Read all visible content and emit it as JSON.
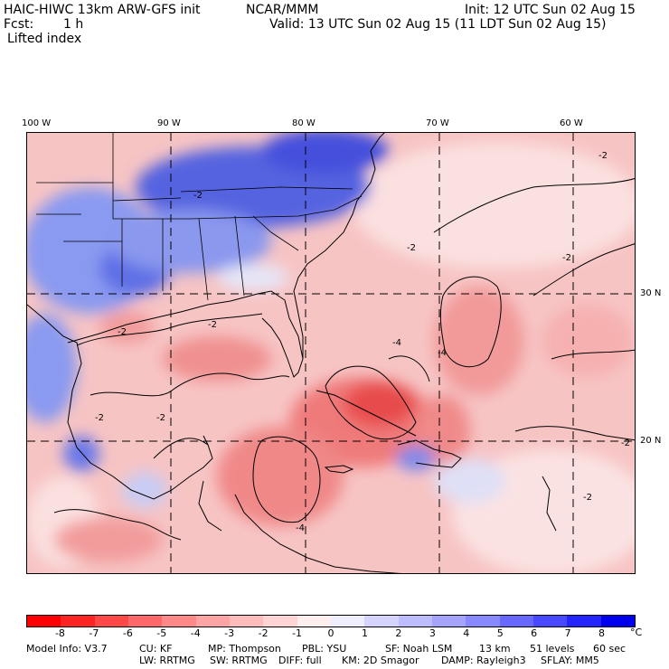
{
  "header": {
    "model_title": "HAIC-HIWC 13km ARW-GFS init",
    "institution": "NCAR/MMM",
    "init": "Init: 12 UTC Sun 02 Aug 15",
    "fcst_label": "Fcst:",
    "fcst_value": "1 h",
    "valid": "Valid: 13 UTC Sun 02 Aug 15 (11 LDT Sun 02 Aug 15)",
    "field": "Lifted index"
  },
  "map": {
    "lon_labels": [
      "100 W",
      "90 W",
      "80 W",
      "70 W",
      "60 W"
    ],
    "lat_labels": [
      "30 N",
      "20 N"
    ],
    "contour_labels": [
      "-2",
      "-2",
      "-2",
      "-2",
      "-2",
      "-2",
      "-2",
      "-2",
      "-4",
      "-4",
      "-4",
      "-2",
      "-2"
    ]
  },
  "colorbar": {
    "unit": "°C",
    "ticks": [
      "-8",
      "-7",
      "-6",
      "-5",
      "-4",
      "-3",
      "-2",
      "-1",
      "0",
      "1",
      "2",
      "3",
      "4",
      "5",
      "6",
      "7",
      "8"
    ],
    "colors": [
      "#ff0000",
      "#ff2424",
      "#ff4848",
      "#ff6868",
      "#ff8888",
      "#ffa4a4",
      "#ffbcbc",
      "#ffd4d4",
      "#ffeeee",
      "#eeeeff",
      "#d4d4ff",
      "#bcbcff",
      "#a4a4ff",
      "#8888ff",
      "#6868ff",
      "#4848ff",
      "#2424ff",
      "#0000ee"
    ]
  },
  "footer": {
    "line1": [
      {
        "k": "model",
        "text": "Model Info: V3.7"
      },
      {
        "k": "cu",
        "text": "CU: KF"
      },
      {
        "k": "mp",
        "text": "MP: Thompson"
      },
      {
        "k": "pbl",
        "text": "PBL: YSU"
      },
      {
        "k": "sf",
        "text": "SF: Noah LSM"
      },
      {
        "k": "res",
        "text": "13 km"
      },
      {
        "k": "levels",
        "text": "51 levels"
      },
      {
        "k": "dt",
        "text": "60 sec"
      }
    ],
    "line2": [
      {
        "k": "lw",
        "text": "LW: RRTMG"
      },
      {
        "k": "sw",
        "text": "SW: RRTMG"
      },
      {
        "k": "diff",
        "text": "DIFF: full"
      },
      {
        "k": "km",
        "text": "KM: 2D Smagor"
      },
      {
        "k": "damp",
        "text": "DAMP: Rayleigh3"
      },
      {
        "k": "sflay",
        "text": "SFLAY: MM5"
      }
    ]
  }
}
